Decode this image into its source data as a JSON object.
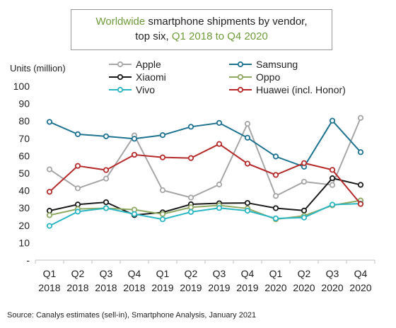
{
  "title": {
    "line1_highlight": "Worldwide",
    "line1_rest": " smartphone shipments by vendor,",
    "line2_start": "top six, ",
    "line2_highlight": "Q1 2018 to Q4 2020"
  },
  "source": "Source: Canalys estimates (sell-in), Smartphone Analysis, January 2021",
  "chart_data": {
    "type": "line",
    "ylabel": "Units (million)",
    "ylim": [
      0,
      100
    ],
    "yticks": [
      {
        "label": "-",
        "value": 0
      },
      {
        "label": "10",
        "value": 10
      },
      {
        "label": "20",
        "value": 20
      },
      {
        "label": "30",
        "value": 30
      },
      {
        "label": "40",
        "value": 40
      },
      {
        "label": "50",
        "value": 50
      },
      {
        "label": "60",
        "value": 60
      },
      {
        "label": "70",
        "value": 70
      },
      {
        "label": "80",
        "value": 80
      },
      {
        "label": "90",
        "value": 90
      },
      {
        "label": "100",
        "value": 100
      }
    ],
    "categories": [
      {
        "q": "Q1",
        "y": "2018"
      },
      {
        "q": "Q2",
        "y": "2018"
      },
      {
        "q": "Q3",
        "y": "2018"
      },
      {
        "q": "Q4",
        "y": "2018"
      },
      {
        "q": "Q1",
        "y": "2019"
      },
      {
        "q": "Q2",
        "y": "2019"
      },
      {
        "q": "Q3",
        "y": "2019"
      },
      {
        "q": "Q4",
        "y": "2019"
      },
      {
        "q": "Q1",
        "y": "2020"
      },
      {
        "q": "Q2",
        "y": "2020"
      },
      {
        "q": "Q3",
        "y": "2020"
      },
      {
        "q": "Q4",
        "y": "2020"
      }
    ],
    "legend_position": "top",
    "series": [
      {
        "name": "Apple",
        "color": "#a6a6a6",
        "values": [
          52.2,
          41.3,
          46.9,
          71.7,
          40.2,
          36.0,
          43.5,
          78.4,
          36.9,
          45.1,
          43.2,
          81.8
        ]
      },
      {
        "name": "Samsung",
        "color": "#1f7391",
        "values": [
          79.5,
          72.4,
          71.2,
          69.8,
          71.9,
          76.7,
          78.9,
          70.4,
          59.6,
          53.7,
          80.2,
          62.1
        ]
      },
      {
        "name": "Xiaomi",
        "color": "#1a1a1a",
        "values": [
          28.4,
          32.0,
          33.3,
          25.9,
          27.5,
          32.1,
          32.7,
          32.9,
          29.9,
          28.5,
          47.1,
          43.3
        ]
      },
      {
        "name": "Oppo",
        "color": "#8fa863",
        "values": [
          25.8,
          29.4,
          29.9,
          29.0,
          26.5,
          30.4,
          31.5,
          29.7,
          23.5,
          25.5,
          31.5,
          34.3
        ]
      },
      {
        "name": "Vivo",
        "color": "#2bb6c3",
        "values": [
          19.7,
          27.9,
          29.9,
          26.5,
          23.5,
          27.7,
          30.0,
          28.4,
          24.0,
          24.5,
          31.9,
          32.5
        ]
      },
      {
        "name": "Huawei (incl. Honor)",
        "color": "#b52a2a",
        "values": [
          39.3,
          54.2,
          51.8,
          60.6,
          59.1,
          58.7,
          66.8,
          55.5,
          49.0,
          55.8,
          51.9,
          32.3
        ]
      }
    ]
  }
}
